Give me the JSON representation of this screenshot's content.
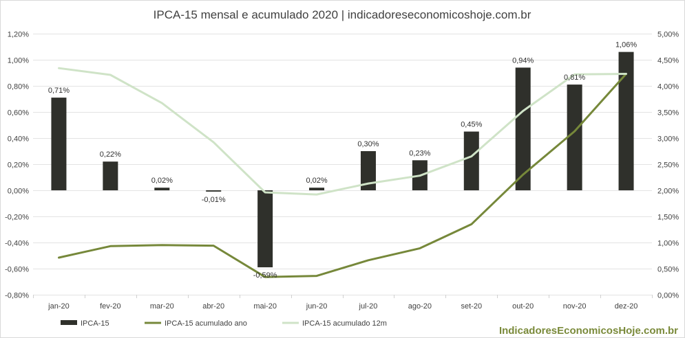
{
  "chart_data": {
    "type": "bar",
    "title": "IPCA-15 mensal e acumulado 2020 | indicadoreseconomicoshoje.com.br",
    "categories": [
      "jan-20",
      "fev-20",
      "mar-20",
      "abr-20",
      "mai-20",
      "jun-20",
      "jul-20",
      "ago-20",
      "set-20",
      "out-20",
      "nov-20",
      "dez-20"
    ],
    "series": [
      {
        "name": "IPCA-15",
        "kind": "bar",
        "axis": "left",
        "color": "#2f302b",
        "values": [
          0.71,
          0.22,
          0.02,
          -0.01,
          -0.59,
          0.02,
          0.3,
          0.23,
          0.45,
          0.94,
          0.81,
          1.06
        ],
        "labels": [
          "0,71%",
          "0,22%",
          "0,02%",
          "-0,01%",
          "-0,59%",
          "0,02%",
          "0,30%",
          "0,23%",
          "0,45%",
          "0,94%",
          "0,81%",
          "1,06%"
        ]
      },
      {
        "name": "IPCA-15 acumulado ano",
        "kind": "line",
        "axis": "right",
        "color": "#76883a",
        "values": [
          0.71,
          0.93,
          0.95,
          0.94,
          0.34,
          0.36,
          0.66,
          0.89,
          1.35,
          2.3,
          3.13,
          4.23
        ]
      },
      {
        "name": "IPCA-15 acumulado 12m",
        "kind": "line",
        "axis": "right",
        "color": "#cfe3c7",
        "values": [
          4.34,
          4.21,
          3.67,
          2.92,
          1.96,
          1.92,
          2.13,
          2.28,
          2.65,
          3.52,
          4.22,
          4.23
        ]
      }
    ],
    "y_left": {
      "min": -0.8,
      "max": 1.2,
      "step": 0.2,
      "ticks": [
        "-0,80%",
        "-0,60%",
        "-0,40%",
        "-0,20%",
        "0,00%",
        "0,20%",
        "0,40%",
        "0,60%",
        "0,80%",
        "1,00%",
        "1,20%"
      ]
    },
    "y_right": {
      "min": 0,
      "max": 5,
      "step": 0.5,
      "ticks": [
        "0,00%",
        "0,50%",
        "1,00%",
        "1,50%",
        "2,00%",
        "2,50%",
        "3,00%",
        "3,50%",
        "4,00%",
        "4,50%",
        "5,00%"
      ]
    },
    "grid": true,
    "legend": "bottom-left",
    "watermark": "IndicadoresEconomicosHoje.com.br"
  }
}
